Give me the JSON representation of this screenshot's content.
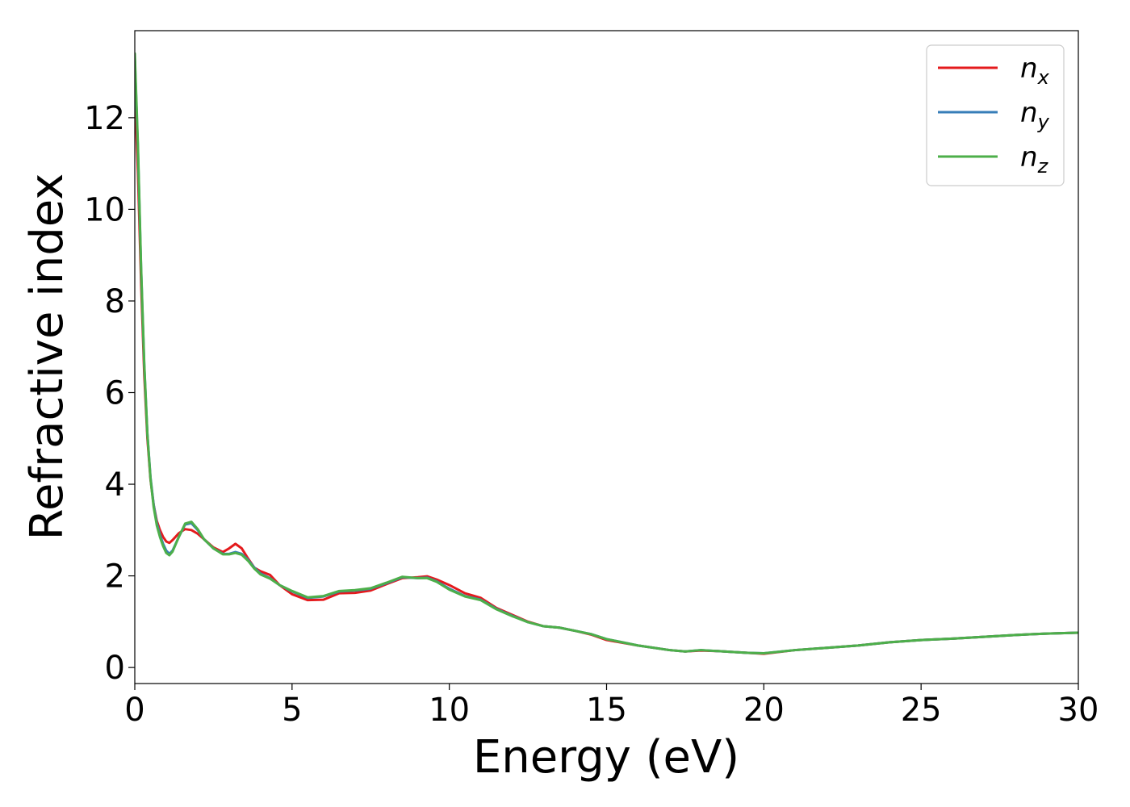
{
  "chart_data": {
    "type": "line",
    "xlabel": "Energy (eV)",
    "ylabel": "Refractive index",
    "xlim": [
      0,
      30
    ],
    "ylim": [
      -0.35,
      13.9
    ],
    "x_ticks": [
      0,
      5,
      10,
      15,
      20,
      25,
      30
    ],
    "y_ticks": [
      0,
      2,
      4,
      6,
      8,
      10,
      12
    ],
    "grid": false,
    "legend_position": "top-right",
    "series": [
      {
        "name": "n",
        "subscript": "x",
        "color": "#e41a1c",
        "x": [
          0,
          0.1,
          0.2,
          0.3,
          0.4,
          0.5,
          0.6,
          0.7,
          0.8,
          0.9,
          1.0,
          1.1,
          1.2,
          1.4,
          1.6,
          1.8,
          2.0,
          2.2,
          2.5,
          2.8,
          3.0,
          3.2,
          3.4,
          3.6,
          3.8,
          4.0,
          4.3,
          4.6,
          5.0,
          5.5,
          6.0,
          6.5,
          7.0,
          7.5,
          8.0,
          8.5,
          9.0,
          9.3,
          9.6,
          10.0,
          10.5,
          11.0,
          11.5,
          12.0,
          12.5,
          13.0,
          13.5,
          14.0,
          14.5,
          15.0,
          16.0,
          17.0,
          17.5,
          18.0,
          18.5,
          19.0,
          19.5,
          20.0,
          21.0,
          22.0,
          23.0,
          24.0,
          25.0,
          26.0,
          27.0,
          28.0,
          29.0,
          30.0
        ],
        "y": [
          12.6,
          10.8,
          8.4,
          6.4,
          5.0,
          4.1,
          3.55,
          3.2,
          3.0,
          2.85,
          2.75,
          2.72,
          2.78,
          2.93,
          3.02,
          3.0,
          2.92,
          2.8,
          2.62,
          2.52,
          2.6,
          2.7,
          2.6,
          2.38,
          2.18,
          2.1,
          2.02,
          1.8,
          1.6,
          1.47,
          1.48,
          1.62,
          1.63,
          1.68,
          1.82,
          1.95,
          1.97,
          1.99,
          1.92,
          1.8,
          1.62,
          1.52,
          1.3,
          1.15,
          1.0,
          0.9,
          0.87,
          0.8,
          0.72,
          0.6,
          0.48,
          0.38,
          0.35,
          0.37,
          0.36,
          0.34,
          0.32,
          0.3,
          0.38,
          0.43,
          0.48,
          0.55,
          0.6,
          0.63,
          0.67,
          0.71,
          0.74,
          0.76
        ]
      },
      {
        "name": "n",
        "subscript": "y",
        "color": "#377eb8",
        "x": [
          0,
          0.1,
          0.2,
          0.3,
          0.4,
          0.5,
          0.6,
          0.7,
          0.8,
          0.9,
          1.0,
          1.1,
          1.2,
          1.4,
          1.6,
          1.8,
          2.0,
          2.2,
          2.5,
          2.8,
          3.0,
          3.2,
          3.4,
          3.6,
          3.8,
          4.0,
          4.3,
          4.6,
          5.0,
          5.5,
          6.0,
          6.5,
          7.0,
          7.5,
          8.0,
          8.5,
          9.0,
          9.3,
          9.6,
          10.0,
          10.5,
          11.0,
          11.5,
          12.0,
          12.5,
          13.0,
          13.5,
          14.0,
          14.5,
          15.0,
          16.0,
          17.0,
          17.5,
          18.0,
          18.5,
          19.0,
          19.5,
          20.0,
          21.0,
          22.0,
          23.0,
          24.0,
          25.0,
          26.0,
          27.0,
          28.0,
          29.0,
          30.0
        ],
        "y": [
          13.3,
          11.3,
          8.7,
          6.6,
          5.1,
          4.15,
          3.55,
          3.15,
          2.9,
          2.7,
          2.55,
          2.48,
          2.55,
          2.85,
          3.12,
          3.15,
          3.0,
          2.8,
          2.6,
          2.48,
          2.48,
          2.52,
          2.48,
          2.35,
          2.18,
          2.05,
          1.95,
          1.8,
          1.66,
          1.52,
          1.55,
          1.66,
          1.68,
          1.72,
          1.84,
          1.97,
          1.95,
          1.96,
          1.88,
          1.72,
          1.56,
          1.48,
          1.28,
          1.13,
          0.99,
          0.9,
          0.87,
          0.8,
          0.73,
          0.62,
          0.48,
          0.38,
          0.35,
          0.38,
          0.36,
          0.34,
          0.32,
          0.31,
          0.38,
          0.43,
          0.48,
          0.55,
          0.6,
          0.63,
          0.67,
          0.71,
          0.74,
          0.76
        ]
      },
      {
        "name": "n",
        "subscript": "z",
        "color": "#4daf4a",
        "x": [
          0,
          0.1,
          0.2,
          0.3,
          0.4,
          0.5,
          0.6,
          0.7,
          0.8,
          0.9,
          1.0,
          1.1,
          1.2,
          1.4,
          1.6,
          1.8,
          2.0,
          2.2,
          2.5,
          2.8,
          3.0,
          3.2,
          3.4,
          3.6,
          3.8,
          4.0,
          4.3,
          4.6,
          5.0,
          5.5,
          6.0,
          6.5,
          7.0,
          7.5,
          8.0,
          8.5,
          9.0,
          9.3,
          9.6,
          10.0,
          10.5,
          11.0,
          11.5,
          12.0,
          12.5,
          13.0,
          13.5,
          14.0,
          14.5,
          15.0,
          16.0,
          17.0,
          17.5,
          18.0,
          18.5,
          19.0,
          19.5,
          20.0,
          21.0,
          22.0,
          23.0,
          24.0,
          25.0,
          26.0,
          27.0,
          28.0,
          29.0,
          30.0
        ],
        "y": [
          13.4,
          11.4,
          8.75,
          6.65,
          5.1,
          4.12,
          3.5,
          3.1,
          2.85,
          2.65,
          2.5,
          2.45,
          2.53,
          2.85,
          3.14,
          3.18,
          3.02,
          2.8,
          2.6,
          2.47,
          2.47,
          2.5,
          2.46,
          2.33,
          2.16,
          2.03,
          1.94,
          1.8,
          1.67,
          1.53,
          1.56,
          1.67,
          1.69,
          1.73,
          1.85,
          1.98,
          1.95,
          1.95,
          1.87,
          1.7,
          1.55,
          1.47,
          1.27,
          1.12,
          0.99,
          0.9,
          0.87,
          0.8,
          0.73,
          0.62,
          0.48,
          0.38,
          0.35,
          0.38,
          0.36,
          0.34,
          0.32,
          0.31,
          0.38,
          0.43,
          0.48,
          0.55,
          0.6,
          0.63,
          0.67,
          0.71,
          0.74,
          0.76
        ]
      }
    ]
  }
}
